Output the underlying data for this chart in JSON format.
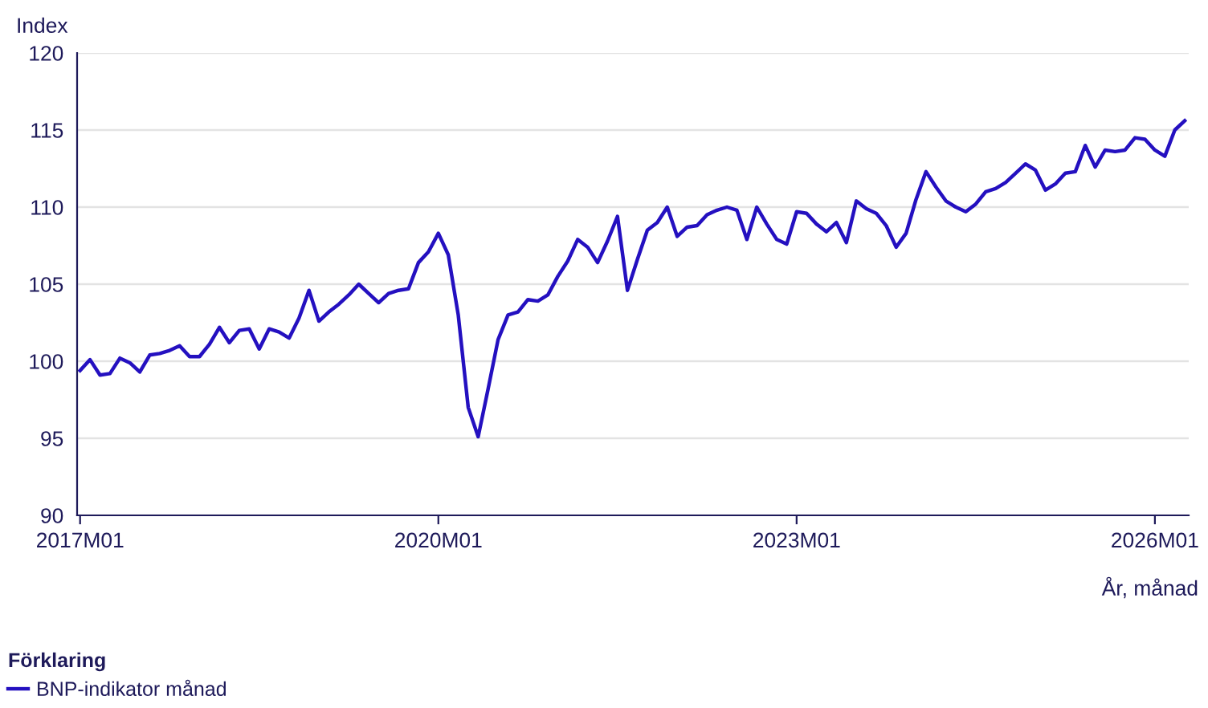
{
  "chart_data": {
    "type": "line",
    "ylabel": "Index",
    "xlabel": "År, månad",
    "legend_title": "Förklaring",
    "legend": "bottom left",
    "grid": "y",
    "marker": "none",
    "line_style": "solid",
    "categories": [
      "2017M01",
      null,
      null,
      null,
      null,
      null,
      null,
      null,
      null,
      null,
      null,
      null,
      null,
      null,
      null,
      null,
      null,
      null,
      null,
      null,
      null,
      null,
      null,
      null,
      null,
      null,
      null,
      null,
      null,
      null,
      null,
      null,
      null,
      null,
      null,
      null,
      "2020M01",
      null,
      null,
      null,
      null,
      null,
      null,
      null,
      null,
      null,
      null,
      null,
      null,
      null,
      null,
      null,
      null,
      null,
      null,
      null,
      null,
      null,
      null,
      null,
      null,
      null,
      null,
      null,
      null,
      null,
      null,
      null,
      null,
      null,
      null,
      null,
      "2023M01",
      null,
      null,
      null,
      null,
      null,
      null,
      null,
      null,
      null,
      null,
      null,
      null,
      null,
      null,
      null,
      null,
      null,
      null,
      null,
      null,
      null,
      null,
      null,
      null,
      null,
      null,
      null,
      null,
      null,
      null,
      null,
      null,
      null,
      null,
      null,
      "2026M01",
      null,
      null,
      null
    ],
    "ylim": [
      90,
      120
    ],
    "yticks": [
      90,
      95,
      100,
      105,
      110,
      115,
      120
    ],
    "series": [
      {
        "name": "BNP-indikator månad",
        "color": "#2410c0",
        "values": [
          99.4,
          100.1,
          99.1,
          99.2,
          100.2,
          99.9,
          99.3,
          100.4,
          100.5,
          100.7,
          101.0,
          100.3,
          100.3,
          101.1,
          102.2,
          101.2,
          102.0,
          102.1,
          100.8,
          102.1,
          101.9,
          101.5,
          102.8,
          104.6,
          102.6,
          103.2,
          103.7,
          104.3,
          105.0,
          104.4,
          103.8,
          104.4,
          104.6,
          104.7,
          106.4,
          107.1,
          108.3,
          106.9,
          103.0,
          97.0,
          95.1,
          98.2,
          101.4,
          103.0,
          103.2,
          104.0,
          103.9,
          104.3,
          105.5,
          106.5,
          107.9,
          107.4,
          106.4,
          107.8,
          109.4,
          104.6,
          106.6,
          108.5,
          109.0,
          110.0,
          108.1,
          108.7,
          108.8,
          109.5,
          109.8,
          110.0,
          109.8,
          107.9,
          110.0,
          108.9,
          107.9,
          107.6,
          109.7,
          109.6,
          108.9,
          108.4,
          109.0,
          107.7,
          110.4,
          109.9,
          109.6,
          108.8,
          107.4,
          108.3,
          110.5,
          112.3,
          111.3,
          110.4,
          110.0,
          109.7,
          110.2,
          111.0,
          111.2,
          111.6,
          112.2,
          112.8,
          112.4,
          111.1,
          111.5,
          112.2,
          112.3,
          114.0,
          112.6,
          113.7,
          113.6,
          113.7,
          114.5,
          114.4,
          113.7,
          113.3,
          115.0,
          115.6
        ]
      }
    ]
  }
}
